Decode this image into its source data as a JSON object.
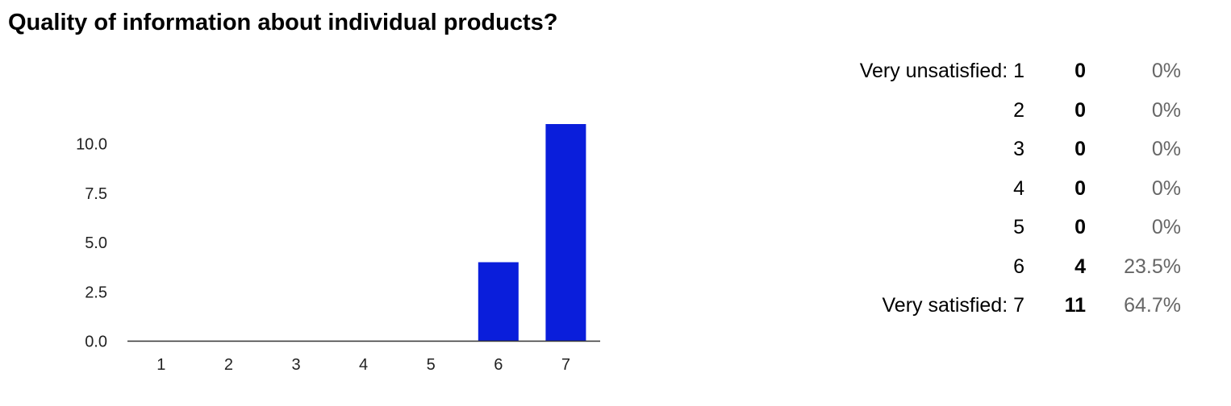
{
  "title": "Quality of information about individual products?",
  "chart_data": {
    "type": "bar",
    "categories": [
      "1",
      "2",
      "3",
      "4",
      "5",
      "6",
      "7"
    ],
    "values": [
      0,
      0,
      0,
      0,
      0,
      4,
      11
    ],
    "yticks": [
      "0.0",
      "2.5",
      "5.0",
      "7.5",
      "10.0"
    ],
    "ytick_values": [
      0,
      2.5,
      5,
      7.5,
      10
    ],
    "ylim": [
      0,
      11.2
    ],
    "bar_color": "#0a1edb",
    "grid": false,
    "legend": "none"
  },
  "summary": [
    {
      "label": "Very unsatisfied: 1",
      "count": "0",
      "percent": "0%"
    },
    {
      "label": "2",
      "count": "0",
      "percent": "0%"
    },
    {
      "label": "3",
      "count": "0",
      "percent": "0%"
    },
    {
      "label": "4",
      "count": "0",
      "percent": "0%"
    },
    {
      "label": "5",
      "count": "0",
      "percent": "0%"
    },
    {
      "label": "6",
      "count": "4",
      "percent": "23.5%"
    },
    {
      "label": "Very satisfied: 7",
      "count": "11",
      "percent": "64.7%"
    }
  ]
}
